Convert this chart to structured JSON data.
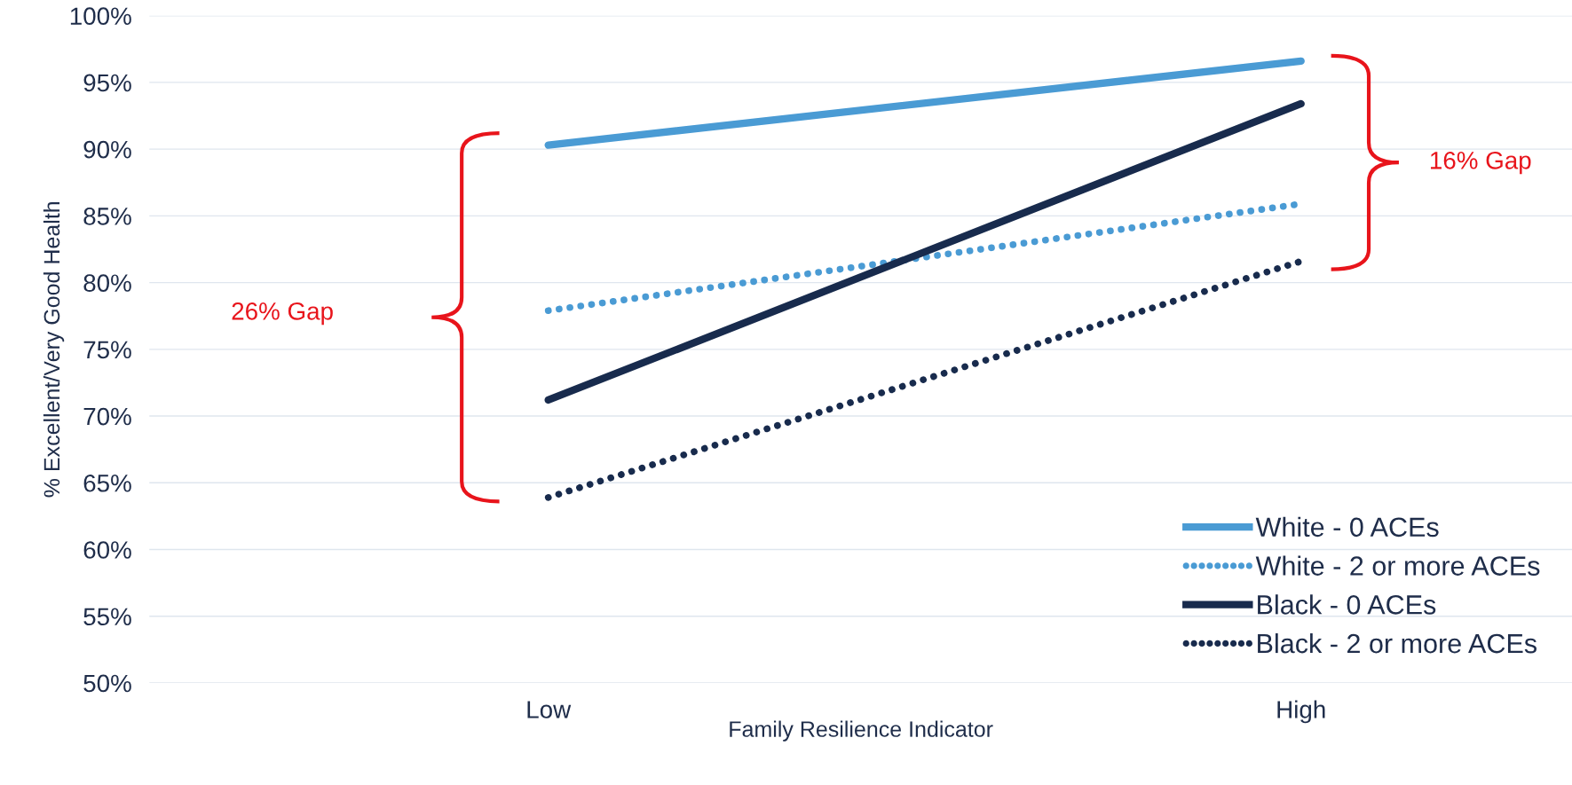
{
  "chart_data": {
    "type": "line",
    "xlabel": "Family Resilience Indicator",
    "ylabel": "% Excellent/Very Good Health",
    "categories": [
      "Low",
      "High"
    ],
    "series": [
      {
        "name": "White - 0 ACEs",
        "color": "#4a9bd4",
        "values": [
          90.3,
          96.6
        ],
        "line_style": "solid"
      },
      {
        "name": "White - 2 or more ACEs",
        "color": "#4a9bd4",
        "values": [
          77.9,
          85.9
        ],
        "line_style": "dotted"
      },
      {
        "name": "Black - 0 ACEs",
        "color": "#182b4d",
        "values": [
          71.2,
          93.4
        ],
        "line_style": "solid"
      },
      {
        "name": "Black - 2 or more ACEs",
        "color": "#182b4d",
        "values": [
          63.9,
          81.6
        ],
        "line_style": "dotted"
      }
    ],
    "ylim": [
      50,
      100
    ],
    "yticks": [
      {
        "value": 50,
        "label": "50%"
      },
      {
        "value": 55,
        "label": "55%"
      },
      {
        "value": 60,
        "label": "60%"
      },
      {
        "value": 65,
        "label": "65%"
      },
      {
        "value": 70,
        "label": "70%"
      },
      {
        "value": 75,
        "label": "75%"
      },
      {
        "value": 80,
        "label": "80%"
      },
      {
        "value": 85,
        "label": "85%"
      },
      {
        "value": 90,
        "label": "90%"
      },
      {
        "value": 95,
        "label": "95%"
      },
      {
        "value": 100,
        "label": "100%"
      }
    ],
    "grid": "y",
    "legend": "bottom right",
    "marker": "none",
    "annotations": [
      "26% Gap",
      "16% Gap"
    ]
  }
}
